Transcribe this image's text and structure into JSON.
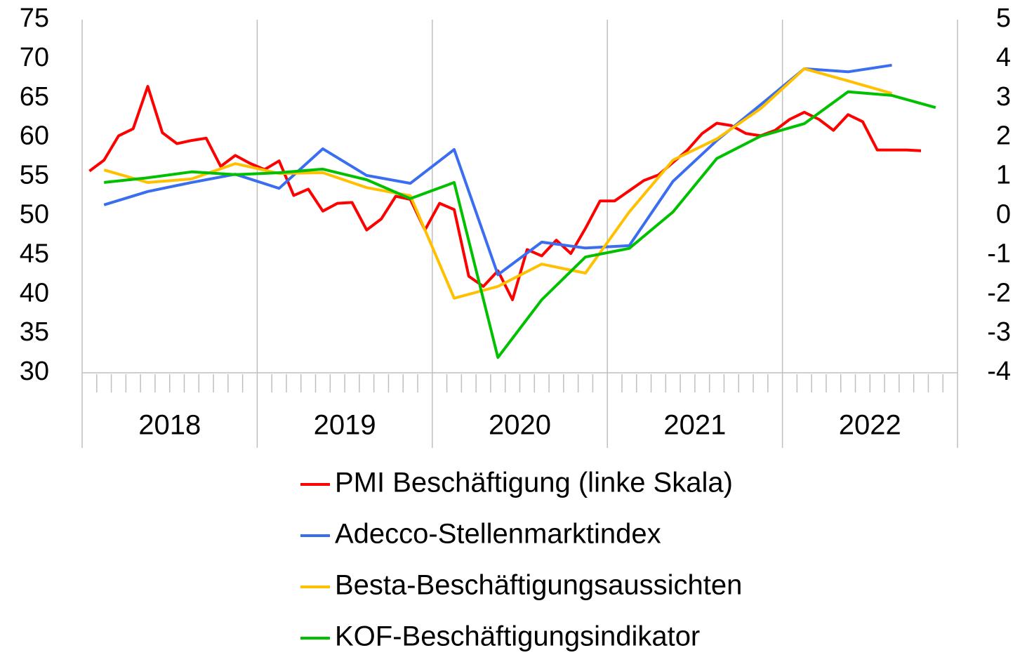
{
  "chart_data": {
    "type": "line",
    "x_groups": [
      "2018",
      "2019",
      "2020",
      "2021",
      "2022"
    ],
    "xlim": [
      -0.5,
      59.5
    ],
    "ylim": [
      30,
      75
    ],
    "yticks": [
      30,
      35,
      40,
      45,
      50,
      55,
      60,
      65,
      70,
      75
    ],
    "y2lim": [
      -4,
      5
    ],
    "y2ticks": [
      -4,
      -3,
      -2,
      -1,
      0,
      1,
      2,
      3,
      4,
      5
    ],
    "series": [
      {
        "name": "PMI Beschäftigung (linke Skala)",
        "color": "#ff0000",
        "x": [
          0,
          1,
          2,
          3,
          4,
          5,
          6,
          7,
          8,
          9,
          10,
          11,
          12,
          13,
          14,
          15,
          16,
          17,
          18,
          19,
          20,
          21,
          22,
          23,
          24,
          25,
          26,
          27,
          28,
          29,
          30,
          31,
          32,
          33,
          34,
          35,
          36,
          37,
          38,
          39,
          40,
          41,
          42,
          43,
          44,
          45,
          46,
          47,
          48,
          49,
          50,
          51,
          52,
          53,
          54,
          55,
          56,
          57
        ],
        "values": [
          55.7,
          57.1,
          60.2,
          61.1,
          66.5,
          60.6,
          59.2,
          59.6,
          59.9,
          56.3,
          57.7,
          56.7,
          55.9,
          57.0,
          52.6,
          53.4,
          50.6,
          51.6,
          51.7,
          48.2,
          49.6,
          52.5,
          52.1,
          48.2,
          51.6,
          50.8,
          42.3,
          41.0,
          43.0,
          39.3,
          45.7,
          44.9,
          46.9,
          45.2,
          48.4,
          51.9,
          51.9,
          53.2,
          54.5,
          55.2,
          56.8,
          58.4,
          60.5,
          61.8,
          61.5,
          60.5,
          60.2,
          60.9,
          62.3,
          63.2,
          62.3,
          60.9,
          62.9,
          62.0,
          58.4,
          58.4,
          58.4,
          58.3
        ]
      },
      {
        "name": "Adecco-Stellenmarktindex",
        "color": "#3a6df0",
        "axis": "y2",
        "x": [
          1,
          4,
          7,
          10,
          13,
          16,
          19,
          22,
          25,
          28,
          31,
          34,
          37,
          40,
          43,
          46,
          49,
          52,
          55
        ],
        "values": [
          0.28,
          0.62,
          0.85,
          1.06,
          0.7,
          1.71,
          1.03,
          0.83,
          1.69,
          -1.5,
          -0.67,
          -0.82,
          -0.76,
          0.88,
          1.92,
          2.83,
          3.75,
          3.67,
          3.84
        ]
      },
      {
        "name": "Besta-Beschäftigungsaussichten",
        "color": "#ffc000",
        "axis": "y2",
        "x": [
          1,
          4,
          7,
          10,
          13,
          16,
          19,
          22,
          25,
          28,
          31,
          34,
          37,
          40,
          43,
          46,
          49,
          52,
          55
        ],
        "values": [
          1.17,
          0.85,
          0.94,
          1.33,
          1.08,
          1.1,
          0.72,
          0.51,
          -2.1,
          -1.8,
          -1.23,
          -1.46,
          0.1,
          1.42,
          1.96,
          2.73,
          3.75,
          3.44,
          3.12
        ]
      },
      {
        "name": "KOF-Beschäftigungsindikator",
        "color": "#00c000",
        "axis": "y2",
        "x": [
          1,
          4,
          7,
          10,
          13,
          16,
          19,
          22,
          25,
          28,
          31,
          34,
          37,
          40,
          43,
          46,
          49,
          52,
          55,
          58
        ],
        "values": [
          0.85,
          0.97,
          1.12,
          1.05,
          1.1,
          1.19,
          0.92,
          0.44,
          0.85,
          -3.61,
          -2.14,
          -1.05,
          -0.83,
          0.1,
          1.46,
          2.03,
          2.35,
          3.16,
          3.07,
          2.76
        ]
      }
    ]
  }
}
